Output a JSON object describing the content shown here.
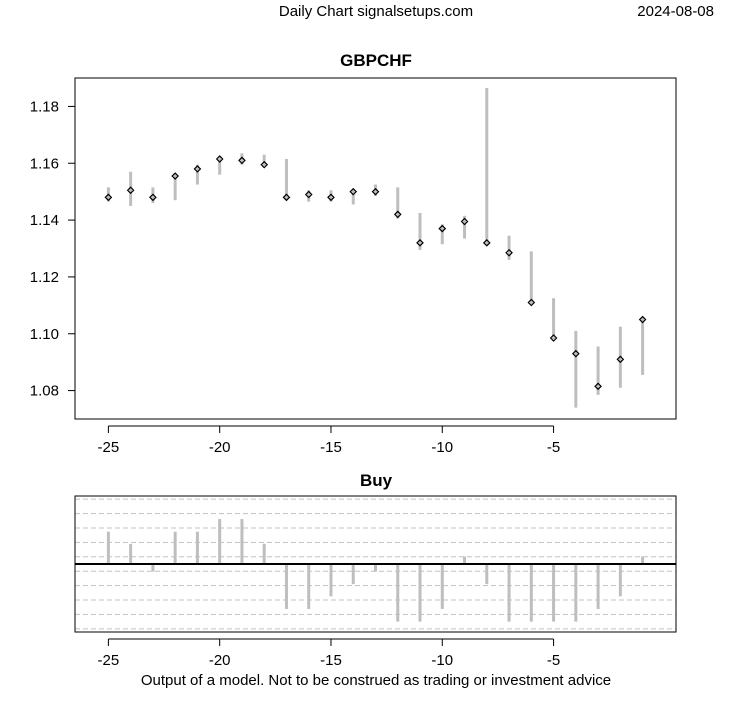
{
  "header": {
    "left": "Daily Chart signalsetups.com",
    "right": "2024-08-08"
  },
  "footer": "Output of a model. Not to be construed as trading or investment advice",
  "colors": {
    "range_bar": "#bebebe",
    "grid": "#c0c0c0",
    "axis": "#000000",
    "mark": "#000000"
  },
  "chart_data": [
    {
      "type": "ohlc",
      "title": "GBPCHF",
      "xlabel": "",
      "ylabel": "",
      "xlim": [
        -26.5,
        0.5
      ],
      "ylim": [
        1.07,
        1.19
      ],
      "xticks": [
        -25,
        -20,
        -15,
        -10,
        -5
      ],
      "yticks": [
        1.08,
        1.1,
        1.12,
        1.14,
        1.16,
        1.18
      ],
      "ytick_labels": [
        "1.08",
        "1.10",
        "1.12",
        "1.14",
        "1.16",
        "1.18"
      ],
      "bars": [
        {
          "x": -25,
          "low": 1.1465,
          "high": 1.1515,
          "close": 1.148
        },
        {
          "x": -24,
          "low": 1.145,
          "high": 1.157,
          "close": 1.1505
        },
        {
          "x": -23,
          "low": 1.146,
          "high": 1.1515,
          "close": 1.148
        },
        {
          "x": -22,
          "low": 1.147,
          "high": 1.1565,
          "close": 1.1555
        },
        {
          "x": -21,
          "low": 1.1525,
          "high": 1.1595,
          "close": 1.158
        },
        {
          "x": -20,
          "low": 1.156,
          "high": 1.1625,
          "close": 1.1615
        },
        {
          "x": -19,
          "low": 1.1595,
          "high": 1.1635,
          "close": 1.161
        },
        {
          "x": -18,
          "low": 1.159,
          "high": 1.163,
          "close": 1.1595
        },
        {
          "x": -17,
          "low": 1.147,
          "high": 1.1615,
          "close": 1.148
        },
        {
          "x": -16,
          "low": 1.1465,
          "high": 1.1505,
          "close": 1.149
        },
        {
          "x": -15,
          "low": 1.1465,
          "high": 1.1505,
          "close": 1.148
        },
        {
          "x": -14,
          "low": 1.1455,
          "high": 1.151,
          "close": 1.15
        },
        {
          "x": -13,
          "low": 1.1485,
          "high": 1.1525,
          "close": 1.15
        },
        {
          "x": -12,
          "low": 1.1405,
          "high": 1.1515,
          "close": 1.142
        },
        {
          "x": -11,
          "low": 1.1295,
          "high": 1.1425,
          "close": 1.132
        },
        {
          "x": -10,
          "low": 1.1315,
          "high": 1.1385,
          "close": 1.137
        },
        {
          "x": -9,
          "low": 1.1335,
          "high": 1.1415,
          "close": 1.1395
        },
        {
          "x": -8,
          "low": 1.131,
          "high": 1.1865,
          "close": 1.132
        },
        {
          "x": -7,
          "low": 1.126,
          "high": 1.1345,
          "close": 1.1285
        },
        {
          "x": -6,
          "low": 1.1105,
          "high": 1.129,
          "close": 1.111
        },
        {
          "x": -5,
          "low": 1.098,
          "high": 1.1125,
          "close": 1.0985
        },
        {
          "x": -4,
          "low": 1.074,
          "high": 1.101,
          "close": 1.093
        },
        {
          "x": -3,
          "low": 1.0785,
          "high": 1.0955,
          "close": 1.0815
        },
        {
          "x": -2,
          "low": 1.081,
          "high": 1.1025,
          "close": 1.091
        },
        {
          "x": -1,
          "low": 1.0855,
          "high": 1.106,
          "close": 1.105
        }
      ]
    },
    {
      "type": "bar",
      "title": "Buy",
      "xlabel": "",
      "ylabel": "",
      "xlim": [
        -26.5,
        0.5
      ],
      "ylim": [
        -1.18,
        1.18
      ],
      "baseline": 0,
      "grid_levels": [
        -1.125,
        -0.875,
        -0.625,
        -0.375,
        -0.125,
        0.125,
        0.375,
        0.625,
        0.875,
        1.125
      ],
      "xticks": [
        -25,
        -20,
        -15,
        -10,
        -5
      ],
      "x": [
        -25,
        -24,
        -23,
        -22,
        -21,
        -20,
        -19,
        -18,
        -17,
        -16,
        -15,
        -14,
        -13,
        -12,
        -11,
        -10,
        -9,
        -8,
        -7,
        -6,
        -5,
        -4,
        -3,
        -2,
        -1
      ],
      "values": [
        0.56,
        0.35,
        -0.13,
        0.56,
        0.56,
        0.78,
        0.78,
        0.35,
        -0.78,
        -0.78,
        -0.56,
        -0.35,
        -0.13,
        -1.0,
        -1.0,
        -0.78,
        0.13,
        -0.35,
        -1.0,
        -1.0,
        -1.0,
        -1.0,
        -0.78,
        -0.56,
        0.13
      ]
    }
  ]
}
